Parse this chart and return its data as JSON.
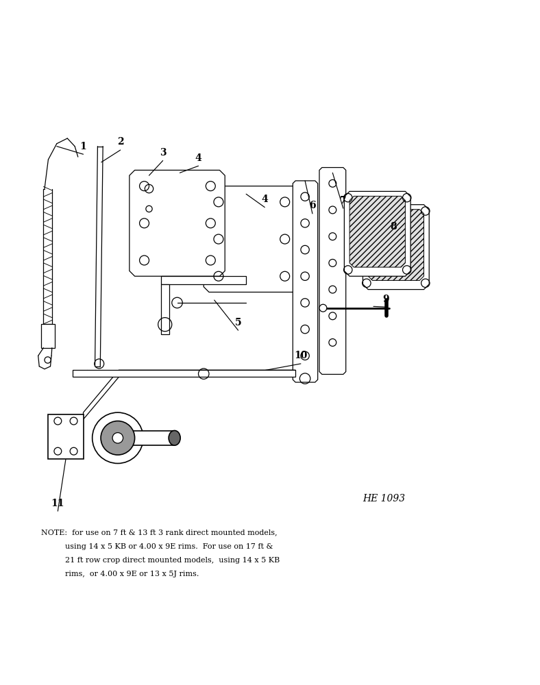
{
  "bg_color": "#ffffff",
  "fig_width": 7.88,
  "fig_height": 10.0,
  "dpi": 100,
  "he_label": "HE 1093",
  "note_line1": "NOTE:  for use on 7 ft & 13 ft 3 rank direct mounted models,",
  "note_line2": "          using 14 x 5 KB or 4.00 x 9E rims.  For use on 17 ft &",
  "note_line3": "          21 ft row crop direct mounted models,  using 14 x 5 KB",
  "note_line4": "          rims,  or 4.00 x 9E or 13 x 5J rims.",
  "lw": 1.2,
  "lw2": 0.9
}
